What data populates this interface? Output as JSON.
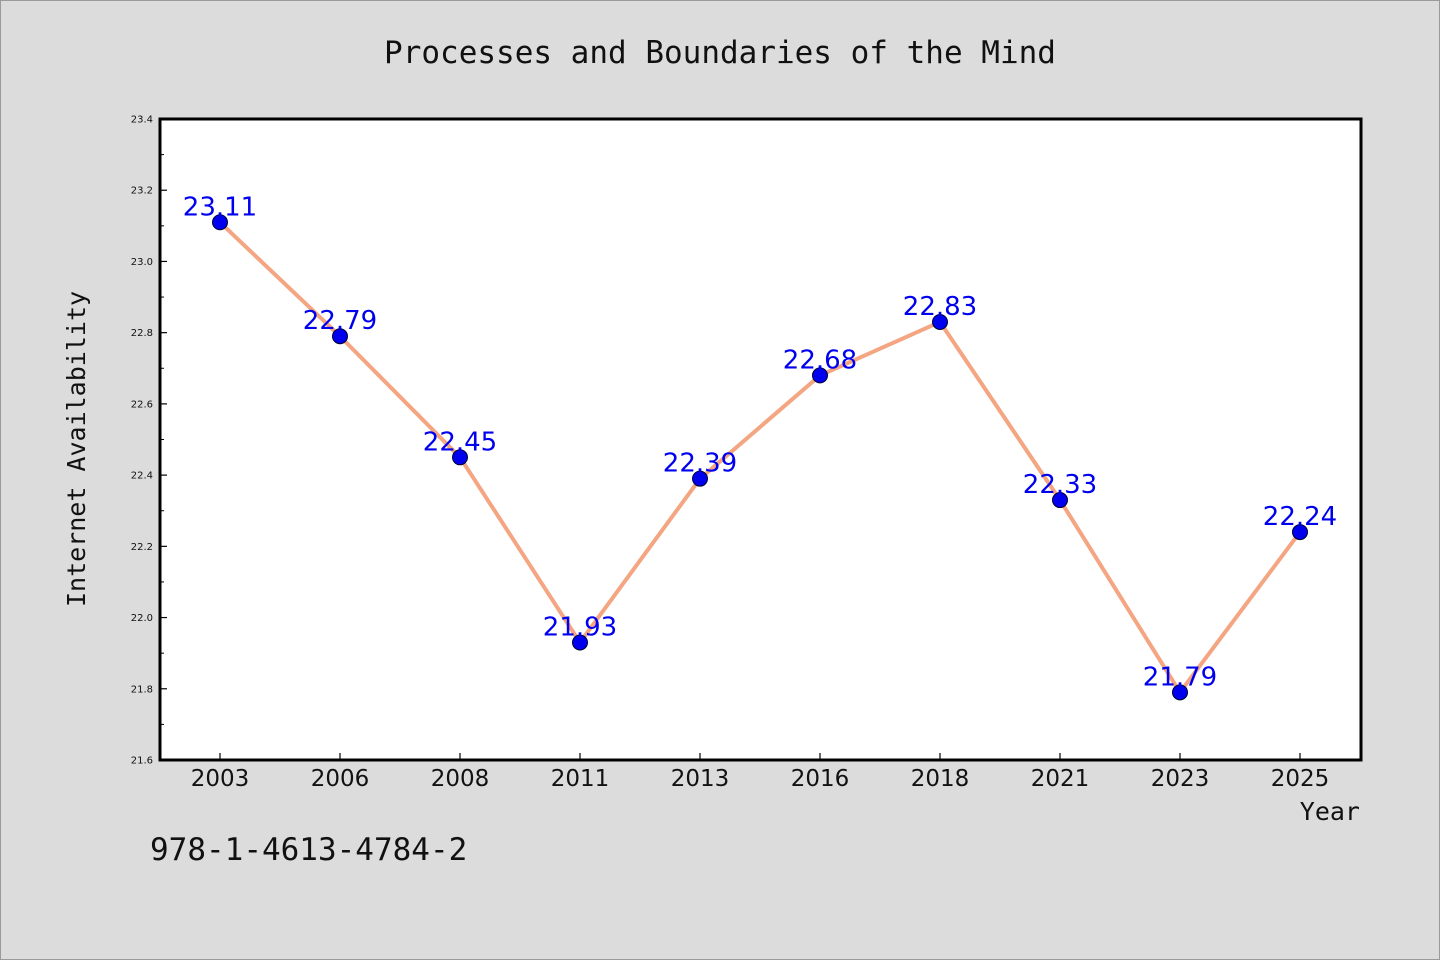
{
  "isbn_text": "978-1-4613-4784-2",
  "chart_data": {
    "type": "line",
    "title": "Processes and Boundaries of the Mind",
    "xlabel": "Year",
    "ylabel": "Internet Availability",
    "categories": [
      "2003",
      "2006",
      "2008",
      "2011",
      "2013",
      "2016",
      "2018",
      "2021",
      "2023",
      "2025"
    ],
    "series": [
      {
        "values": [
          23.11,
          22.79,
          22.45,
          21.93,
          22.39,
          22.68,
          22.83,
          22.33,
          21.79,
          22.24
        ],
        "labels": [
          "23.11",
          "22.79",
          "22.45",
          "21.93",
          "22.39",
          "22.68",
          "22.83",
          "22.33",
          "21.79",
          "22.24"
        ],
        "line_color": "#f4a582",
        "marker_color": "#0000ee"
      }
    ],
    "ylim": [
      21.6,
      23.4
    ],
    "yticks": [
      "21.6",
      "21.8",
      "22.0",
      "22.2",
      "22.4",
      "22.6",
      "22.8",
      "23.0",
      "23.2",
      "23.4"
    ],
    "grid": false,
    "background": "#dcdcdc",
    "plot_background": "#ffffff",
    "label_color": "#0000ee"
  }
}
